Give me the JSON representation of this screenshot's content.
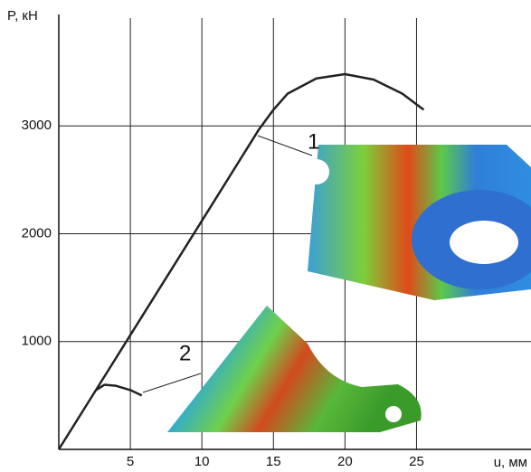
{
  "chart_data": {
    "type": "line",
    "x_label": "u, мм",
    "y_label": "P, кН",
    "xlim": [
      0,
      33
    ],
    "ylim": [
      0,
      4000
    ],
    "xticks": [
      5,
      10,
      15,
      20,
      25
    ],
    "yticks": [
      1000,
      2000,
      3000
    ],
    "grid": true,
    "annotations": [
      "1",
      "2"
    ],
    "series": [
      {
        "color": "#222222",
        "x": [
          0,
          5,
          10,
          14,
          15,
          16,
          18,
          20,
          22,
          24,
          25.5
        ],
        "values": [
          0,
          1060,
          2120,
          2970,
          3150,
          3300,
          3440,
          3480,
          3430,
          3300,
          3150
        ]
      },
      {
        "color": "#222222",
        "x": [
          2.6,
          3.2,
          4,
          5,
          5.8
        ],
        "values": [
          550,
          600,
          590,
          550,
          500
        ]
      }
    ]
  }
}
